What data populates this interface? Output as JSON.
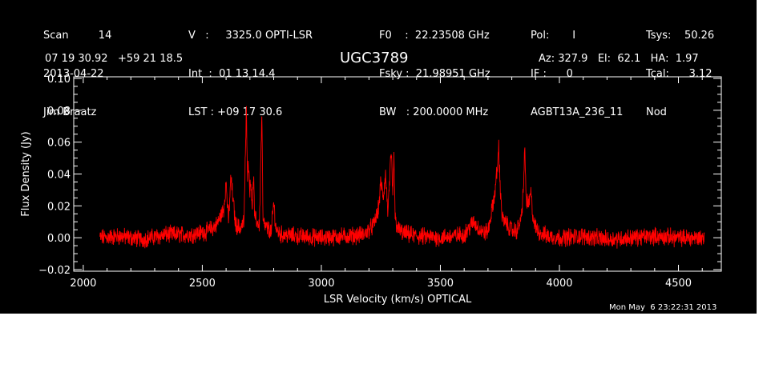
{
  "header": {
    "col1": [
      "Scan         14",
      "2013-04-22",
      "Jim Braatz"
    ],
    "col2": [
      "V   :     3325.0 OPTI-LSR",
      "Int  :  01 13 14.4",
      "LST : +09 17 30.6"
    ],
    "col3": [
      "F0    :  22.23508 GHz",
      "Fsky :  21.98951 GHz",
      "BW   : 200.0000 MHz"
    ],
    "col4": [
      "Pol:       I",
      "IF :      0",
      "AGBT13A_236_11"
    ],
    "col5": [
      "Tsys:    50.26",
      "Tcal:      3.12",
      "Nod"
    ],
    "coords": "07 19 30.92   +59 21 18.5",
    "source": "UGC3789",
    "pointing": "Az: 327.9   El:  62.1   HA:  1.97",
    "timestamp": "Mon May  6 23:22:31 2013"
  },
  "colors": {
    "background": "#000000",
    "axes": "#ffffff",
    "spectrum": "#ff0000"
  },
  "chart_data": {
    "type": "line",
    "xlabel": "LSR Velocity (km/s) OPTICAL",
    "ylabel": "Flux Density (Jy)",
    "xlim": [
      1960,
      4680
    ],
    "ylim": [
      -0.021,
      0.101
    ],
    "xticks": [
      2000,
      2500,
      3000,
      3500,
      4000,
      4500
    ],
    "xtick_labels": [
      "2000",
      "2500",
      "3000",
      "3500",
      "4000",
      "4500"
    ],
    "yticks": [
      -0.02,
      0.0,
      0.02,
      0.04,
      0.06,
      0.08,
      0.1
    ],
    "ytick_labels": [
      "−0.02",
      "0.00",
      "0.02",
      "0.04",
      "0.06",
      "0.08",
      "0.10"
    ],
    "grid": false,
    "series": [
      {
        "color": "#ff0000",
        "x": [
          2070,
          2150,
          2250,
          2350,
          2450,
          2520,
          2560,
          2590,
          2600,
          2610,
          2620,
          2640,
          2660,
          2675,
          2685,
          2690,
          2695,
          2700,
          2705,
          2710,
          2715,
          2720,
          2730,
          2740,
          2745,
          2750,
          2755,
          2760,
          2770,
          2790,
          2800,
          2810,
          2830,
          2900,
          3000,
          3100,
          3180,
          3220,
          3240,
          3250,
          3260,
          3270,
          3280,
          3290,
          3295,
          3300,
          3305,
          3310,
          3320,
          3340,
          3400,
          3500,
          3600,
          3640,
          3660,
          3680,
          3700,
          3720,
          3730,
          3740,
          3745,
          3750,
          3760,
          3780,
          3800,
          3820,
          3840,
          3850,
          3855,
          3860,
          3870,
          3880,
          3890,
          3900,
          3920,
          3950,
          4000,
          4100,
          4200,
          4300,
          4400,
          4500,
          4610
        ],
        "y": [
          0.0,
          0.001,
          -0.001,
          0.002,
          0.002,
          0.004,
          0.008,
          0.018,
          0.035,
          0.01,
          0.038,
          0.008,
          0.006,
          0.01,
          0.08,
          0.04,
          0.046,
          0.03,
          0.035,
          0.018,
          0.04,
          0.012,
          0.01,
          0.008,
          0.045,
          0.078,
          0.01,
          0.008,
          0.006,
          0.004,
          0.022,
          0.005,
          0.002,
          0.001,
          0.0,
          0.001,
          0.002,
          0.008,
          0.018,
          0.035,
          0.025,
          0.04,
          0.015,
          0.045,
          0.05,
          0.025,
          0.053,
          0.012,
          0.006,
          0.003,
          0.001,
          0.0,
          0.002,
          0.01,
          0.006,
          0.003,
          0.004,
          0.02,
          0.03,
          0.045,
          0.058,
          0.036,
          0.012,
          0.008,
          0.005,
          0.004,
          0.012,
          0.035,
          0.056,
          0.025,
          0.02,
          0.028,
          0.012,
          0.006,
          0.003,
          0.001,
          0.0,
          0.001,
          -0.001,
          0.0,
          0.001,
          0.0,
          0.0
        ]
      }
    ]
  }
}
